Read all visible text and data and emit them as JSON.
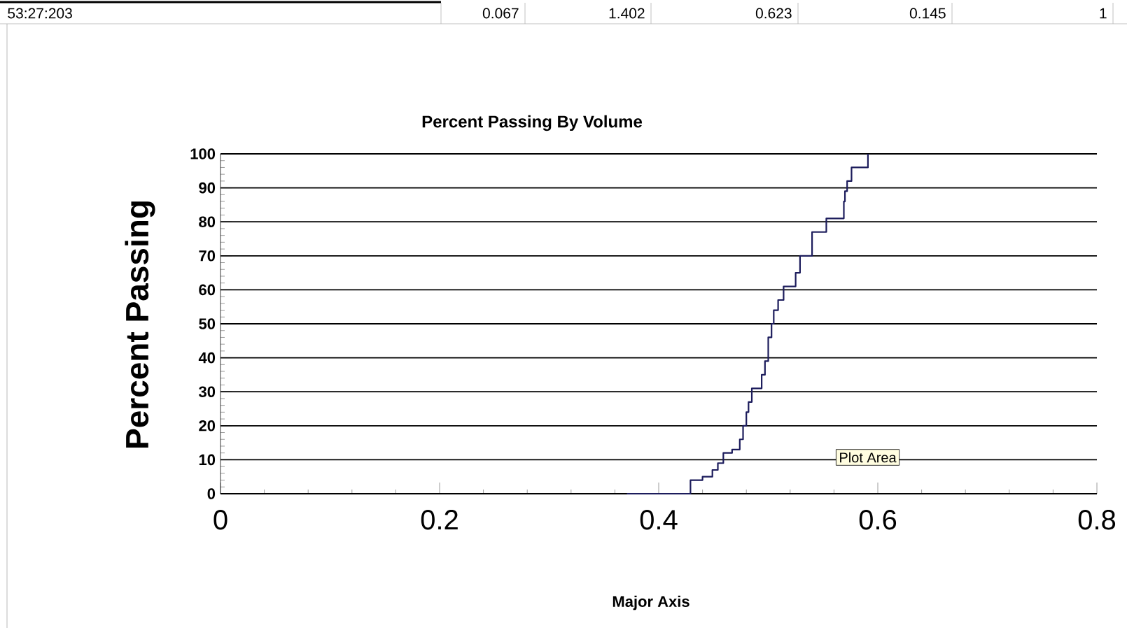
{
  "chart_data": {
    "type": "step",
    "title": "Percent Passing By Volume",
    "xlabel": "Major Axis",
    "ylabel": "Percent Passing",
    "annotations": [
      "53:27:203",
      "0.067",
      "1.402",
      "0.623",
      "0.145",
      "1",
      "Plot Area"
    ],
    "series": [
      {
        "color": "#1c1c5c",
        "x": [
          0.371,
          0.429,
          0.44,
          0.449,
          0.454,
          0.459,
          0.467,
          0.474,
          0.477,
          0.48,
          0.482,
          0.485,
          0.494,
          0.497,
          0.5,
          0.503,
          0.505,
          0.509,
          0.514,
          0.525,
          0.529,
          0.54,
          0.553,
          0.569,
          0.57,
          0.572,
          0.576,
          0.591
        ],
        "values": [
          0,
          4,
          5,
          7,
          9,
          12,
          13,
          16,
          20,
          24,
          27,
          31,
          35,
          39,
          46,
          50,
          54,
          57,
          61,
          65,
          70,
          77,
          81,
          86,
          89,
          92,
          96,
          100
        ]
      }
    ],
    "xlim": [
      0,
      0.8
    ],
    "ylim": [
      0,
      100
    ],
    "xticks": [
      0,
      0.2,
      0.4,
      0.6,
      0.8
    ],
    "yticks": [
      0,
      10,
      20,
      30,
      40,
      50,
      60,
      70,
      80,
      90,
      100
    ],
    "grid": "y",
    "marker": "none",
    "line_style": "solid"
  }
}
